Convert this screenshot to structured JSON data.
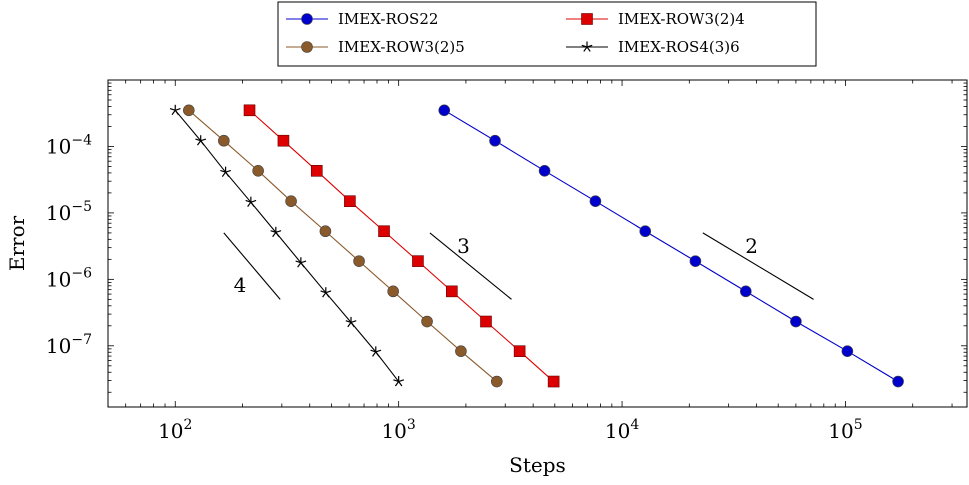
{
  "chart_data": {
    "type": "line",
    "title": "",
    "xlabel": "Steps",
    "ylabel": "Error",
    "xscale": "log",
    "yscale": "log",
    "xlim": [
      50,
      350000
    ],
    "ylim": [
      1.2e-08,
      0.001
    ],
    "xticks": [
      {
        "value": 100,
        "base": "10",
        "exp": "2"
      },
      {
        "value": 1000,
        "base": "10",
        "exp": "3"
      },
      {
        "value": 10000,
        "base": "10",
        "exp": "4"
      },
      {
        "value": 100000,
        "base": "10",
        "exp": "5"
      }
    ],
    "yticks": [
      {
        "value": 0.0001,
        "base": "10",
        "exp": "−4"
      },
      {
        "value": 1e-05,
        "base": "10",
        "exp": "−5"
      },
      {
        "value": 1e-06,
        "base": "10",
        "exp": "−6"
      },
      {
        "value": 1e-07,
        "base": "10",
        "exp": "−7"
      }
    ],
    "grid": false,
    "legend_position": "top-center",
    "series": [
      {
        "name": "IMEX-ROS22",
        "color": "#0000cc",
        "marker": "circle",
        "x": [
          1600,
          2700,
          4500,
          7600,
          12700,
          21300,
          35800,
          60000,
          102000,
          172000
        ],
        "y": [
          0.00035,
          0.000122,
          4.3e-05,
          1.5e-05,
          5.3e-06,
          1.88e-06,
          6.6e-07,
          2.32e-07,
          8.3e-08,
          2.9e-08
        ]
      },
      {
        "name": "IMEX-ROW3(2)4",
        "color": "#dd0000",
        "marker": "square",
        "x": [
          215,
          305,
          430,
          605,
          860,
          1220,
          1730,
          2460,
          3480,
          4940
        ],
        "y": [
          0.00035,
          0.000122,
          4.3e-05,
          1.5e-05,
          5.3e-06,
          1.88e-06,
          6.6e-07,
          2.32e-07,
          8.3e-08,
          2.9e-08
        ]
      },
      {
        "name": "IMEX-ROW3(2)5",
        "color": "#8a5a2b",
        "marker": "circle",
        "x": [
          115,
          165,
          235,
          330,
          470,
          665,
          945,
          1340,
          1900,
          2750
        ],
        "y": [
          0.00035,
          0.000122,
          4.3e-05,
          1.5e-05,
          5.3e-06,
          1.88e-06,
          6.6e-07,
          2.32e-07,
          8.3e-08,
          2.9e-08
        ]
      },
      {
        "name": "IMEX-ROS4(3)6",
        "color": "#000000",
        "marker": "star",
        "x": [
          100,
          130,
          168,
          218,
          282,
          365,
          472,
          612,
          790,
          1000
        ],
        "y": [
          0.00035,
          0.000122,
          4.1e-05,
          1.45e-05,
          5.1e-06,
          1.78e-06,
          6.3e-07,
          2.25e-07,
          8.1e-08,
          2.9e-08
        ]
      }
    ],
    "slope_markers": [
      {
        "label": "4",
        "x": [
          165,
          295
        ],
        "y": [
          5e-06,
          5e-07
        ],
        "label_x": 195,
        "label_y": 6.5e-07
      },
      {
        "label": "3",
        "x": [
          1380,
          3200
        ],
        "y": [
          5e-06,
          5e-07
        ],
        "label_x": 1950,
        "label_y": 2.5e-06
      },
      {
        "label": "2",
        "x": [
          23000,
          72000
        ],
        "y": [
          5e-06,
          5e-07
        ],
        "label_x": 38000,
        "label_y": 2.5e-06
      }
    ]
  }
}
